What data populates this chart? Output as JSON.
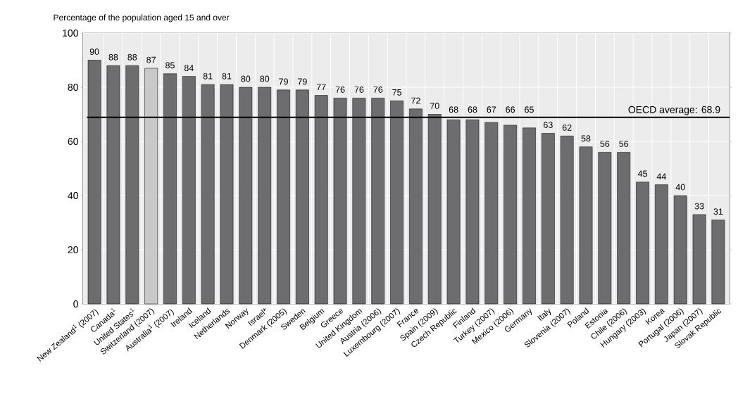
{
  "chart_data": {
    "type": "bar",
    "ylabel": "Percentage of the population aged 15 and over",
    "categories": [
      "New Zealand$^{1}$ (2007)",
      "Canada$^{1}$",
      "United States$^{1}$",
      "Switzerland (2007)",
      "Australia$^{1}$ (2007)",
      "Ireland",
      "Iceland",
      "Netherlands",
      "Norway",
      "Israel*",
      "Denmark (2005)",
      "Sweden",
      "Belgium",
      "Greece",
      "United Kingdom",
      "Austria (2006)",
      "Luxembourg (2007)",
      "France",
      "Spain (2009)",
      "Czech Republic",
      "Finland",
      "Turkey (2007)",
      "Mexico (2006)",
      "Germany",
      "Italy",
      "Slovenia (2007)",
      "Poland",
      "Estonia",
      "Chile (2006)",
      "Hungary (2003)",
      "Korea",
      "Portugal (2006)",
      "Japan (2007)",
      "Slovak Republic"
    ],
    "values": [
      90,
      88,
      88,
      87,
      85,
      84,
      81,
      81,
      80,
      80,
      79,
      79,
      77,
      76,
      76,
      76,
      75,
      72,
      70,
      68,
      68,
      67,
      66,
      65,
      63,
      62,
      58,
      56,
      56,
      45,
      44,
      40,
      33,
      31
    ],
    "colors": [
      "#6d6d6f",
      "#6d6d6f",
      "#6d6d6f",
      "#c8c8c8",
      "#6d6d6f",
      "#6d6d6f",
      "#6d6d6f",
      "#6d6d6f",
      "#6d6d6f",
      "#6d6d6f",
      "#6d6d6f",
      "#6d6d6f",
      "#6d6d6f",
      "#6d6d6f",
      "#6d6d6f",
      "#6d6d6f",
      "#6d6d6f",
      "#6d6d6f",
      "#6d6d6f",
      "#6d6d6f",
      "#6d6d6f",
      "#6d6d6f",
      "#6d6d6f",
      "#6d6d6f",
      "#6d6d6f",
      "#6d6d6f",
      "#6d6d6f",
      "#6d6d6f",
      "#6d6d6f",
      "#6d6d6f",
      "#6d6d6f",
      "#6d6d6f",
      "#6d6d6f",
      "#6d6d6f"
    ],
    "data_labels": true,
    "ylim": [
      0,
      100
    ],
    "yticks": [
      0,
      20,
      40,
      60,
      80,
      100
    ],
    "grid": true,
    "ref_lines": [
      {
        "axis": "y",
        "value": 68.9,
        "label": "OECD average: 68.9",
        "color": "#000000"
      }
    ]
  }
}
